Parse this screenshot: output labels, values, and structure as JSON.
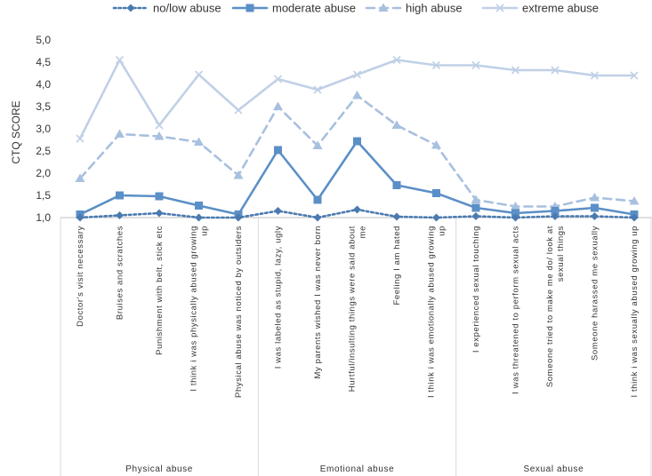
{
  "chart_data": {
    "type": "line",
    "ylabel": "CTQ SCORE",
    "xlabel": "",
    "ylim": [
      1.0,
      5.0
    ],
    "yticks": [
      "1,0",
      "1,5",
      "2,0",
      "2,5",
      "3,0",
      "3,5",
      "4,0",
      "4,5",
      "5,0"
    ],
    "grid": false,
    "legend_position": "top",
    "categories": [
      "Doctor's visit necessary",
      "Bruises and scratches",
      "Punishment with belt, stick etc",
      "I think i was physically abused growing up",
      "Physical abuse was noticed by outsiders",
      "I was labeled as stupid, lazy, ugly",
      "My parents wished I was never born",
      "Hurtful/insulting things were said about me",
      "Feeling I am hated",
      "I think i was emotionally abused growing up",
      "I experienced sexual touching",
      "I was threatened to perform sexual acts",
      "Someone tried to make me do/ look at sexual things",
      "Someone harassed me sexually",
      "I think i was sexually abused growing up"
    ],
    "groups": [
      {
        "label": "Physical abuse",
        "start": 0,
        "end": 4
      },
      {
        "label": "Emotional abuse",
        "start": 5,
        "end": 9
      },
      {
        "label": "Sexual abuse",
        "start": 10,
        "end": 14
      }
    ],
    "series": [
      {
        "name": "no/low abuse",
        "color": "#4a7ab0",
        "style": "dotted",
        "marker": "diamond",
        "values": [
          1.0,
          1.05,
          1.1,
          1.0,
          1.0,
          1.15,
          1.0,
          1.18,
          1.02,
          1.0,
          1.03,
          1.0,
          1.03,
          1.03,
          1.0
        ]
      },
      {
        "name": "moderate abuse",
        "color": "#5b8fc7",
        "style": "solid",
        "marker": "square",
        "values": [
          1.07,
          1.5,
          1.48,
          1.27,
          1.07,
          2.52,
          1.4,
          2.72,
          1.73,
          1.55,
          1.22,
          1.1,
          1.15,
          1.22,
          1.07
        ]
      },
      {
        "name": "high abuse",
        "color": "#a8c0df",
        "style": "dashed",
        "marker": "triangle",
        "values": [
          1.88,
          2.88,
          2.83,
          2.7,
          1.95,
          3.5,
          2.62,
          3.75,
          3.08,
          2.63,
          1.4,
          1.25,
          1.25,
          1.45,
          1.37
        ]
      },
      {
        "name": "extreme abuse",
        "color": "#c0d0e6",
        "style": "solid",
        "marker": "x",
        "values": [
          2.78,
          4.55,
          3.08,
          4.22,
          3.42,
          4.12,
          3.88,
          4.22,
          4.55,
          4.43,
          4.43,
          4.32,
          4.32,
          4.2,
          4.2
        ]
      }
    ]
  }
}
